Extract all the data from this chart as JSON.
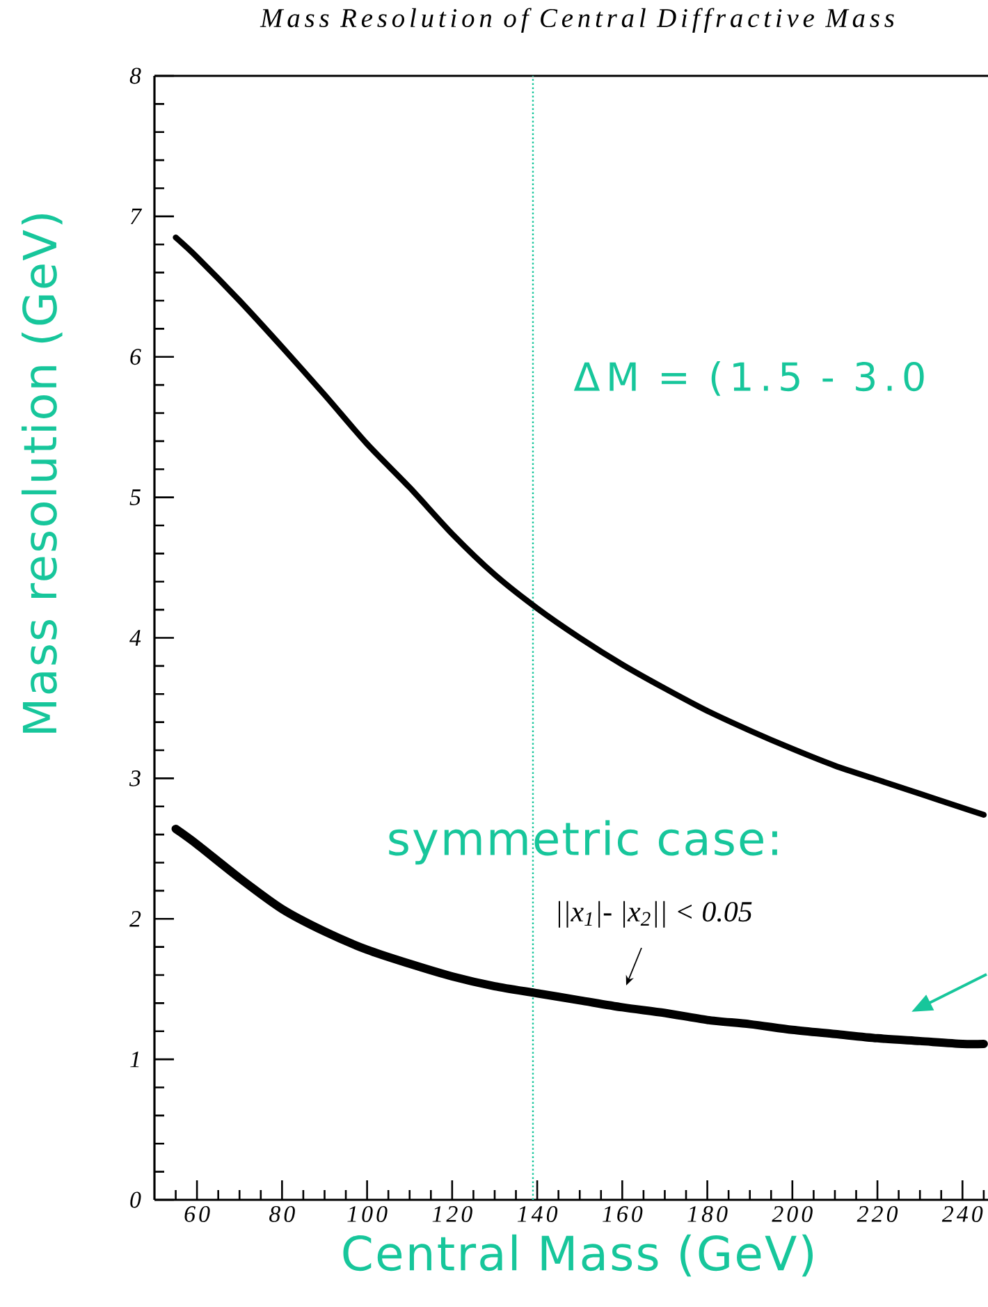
{
  "chart_data": {
    "type": "line",
    "title": "Mass Resolution of Central Diffractive Mass",
    "xlabel": "Central Mass (GeV)",
    "ylabel": "Mass resolution (GeV)",
    "x": [
      55,
      60,
      70,
      80,
      90,
      100,
      110,
      120,
      130,
      140,
      150,
      160,
      170,
      180,
      190,
      200,
      210,
      220,
      230,
      240,
      245
    ],
    "series": [
      {
        "color": "#000000",
        "values": [
          6.85,
          6.71,
          6.4,
          6.07,
          5.73,
          5.38,
          5.07,
          4.74,
          4.45,
          4.21,
          4.0,
          3.81,
          3.64,
          3.48,
          3.34,
          3.21,
          3.09,
          2.99,
          2.89,
          2.79,
          2.74
        ]
      },
      {
        "color": "#000000",
        "values": [
          2.64,
          2.53,
          2.29,
          2.07,
          1.91,
          1.78,
          1.68,
          1.59,
          1.52,
          1.47,
          1.42,
          1.37,
          1.33,
          1.28,
          1.25,
          1.21,
          1.18,
          1.15,
          1.13,
          1.11,
          1.11
        ]
      }
    ],
    "xlim": [
      50,
      246
    ],
    "ylim": [
      0,
      8
    ],
    "xticks": [
      {
        "value": 55,
        "label": null
      },
      60,
      {
        "value": 65,
        "label": null
      },
      {
        "value": 70,
        "label": null
      },
      {
        "value": 75,
        "label": null
      },
      80,
      {
        "value": 85,
        "label": null
      },
      {
        "value": 90,
        "label": null
      },
      {
        "value": 95,
        "label": null
      },
      100,
      {
        "value": 105,
        "label": null
      },
      {
        "value": 110,
        "label": null
      },
      {
        "value": 115,
        "label": null
      },
      120,
      {
        "value": 125,
        "label": null
      },
      {
        "value": 130,
        "label": null
      },
      {
        "value": 135,
        "label": null
      },
      140,
      {
        "value": 145,
        "label": null
      },
      {
        "value": 150,
        "label": null
      },
      {
        "value": 155,
        "label": null
      },
      160,
      {
        "value": 165,
        "label": null
      },
      {
        "value": 170,
        "label": null
      },
      {
        "value": 175,
        "label": null
      },
      180,
      {
        "value": 185,
        "label": null
      },
      {
        "value": 190,
        "label": null
      },
      {
        "value": 195,
        "label": null
      },
      200,
      {
        "value": 205,
        "label": null
      },
      {
        "value": 210,
        "label": null
      },
      {
        "value": 215,
        "label": null
      },
      220,
      {
        "value": 225,
        "label": null
      },
      {
        "value": 230,
        "label": null
      },
      {
        "value": 235,
        "label": null
      },
      240,
      {
        "value": 245,
        "label": null
      }
    ],
    "yticks": [
      0,
      {
        "value": 0.2,
        "label": null
      },
      {
        "value": 0.4,
        "label": null
      },
      {
        "value": 0.6,
        "label": null
      },
      {
        "value": 0.8,
        "label": null
      },
      1,
      {
        "value": 1.2,
        "label": null
      },
      {
        "value": 1.4,
        "label": null
      },
      {
        "value": 1.6,
        "label": null
      },
      {
        "value": 1.8,
        "label": null
      },
      2,
      {
        "value": 2.2,
        "label": null
      },
      {
        "value": 2.4,
        "label": null
      },
      {
        "value": 2.6,
        "label": null
      },
      {
        "value": 2.8,
        "label": null
      },
      3,
      {
        "value": 3.2,
        "label": null
      },
      {
        "value": 3.4,
        "label": null
      },
      {
        "value": 3.6,
        "label": null
      },
      {
        "value": 3.8,
        "label": null
      },
      4,
      {
        "value": 4.2,
        "label": null
      },
      {
        "value": 4.4,
        "label": null
      },
      {
        "value": 4.6,
        "label": null
      },
      {
        "value": 4.8,
        "label": null
      },
      5,
      {
        "value": 5.2,
        "label": null
      },
      {
        "value": 5.4,
        "label": null
      },
      {
        "value": 5.6,
        "label": null
      },
      {
        "value": 5.8,
        "label": null
      },
      6,
      {
        "value": 6.2,
        "label": null
      },
      {
        "value": 6.4,
        "label": null
      },
      {
        "value": 6.6,
        "label": null
      },
      {
        "value": 6.8,
        "label": null
      },
      7,
      {
        "value": 7.2,
        "label": null
      },
      {
        "value": 7.4,
        "label": null
      },
      {
        "value": 7.6,
        "label": null
      },
      {
        "value": 7.8,
        "label": null
      },
      8
    ],
    "ref_lines": [
      {
        "axis": "x",
        "value": 139,
        "color": "#17c69b",
        "line_style": "dotted"
      }
    ],
    "annotations": [
      "ΔM = (1.5 - 3.0",
      "symmetric case:",
      "||x$_{1}$|- |x$_{2}$|| < 0.05"
    ],
    "marker": "none",
    "line_style": "solid"
  }
}
